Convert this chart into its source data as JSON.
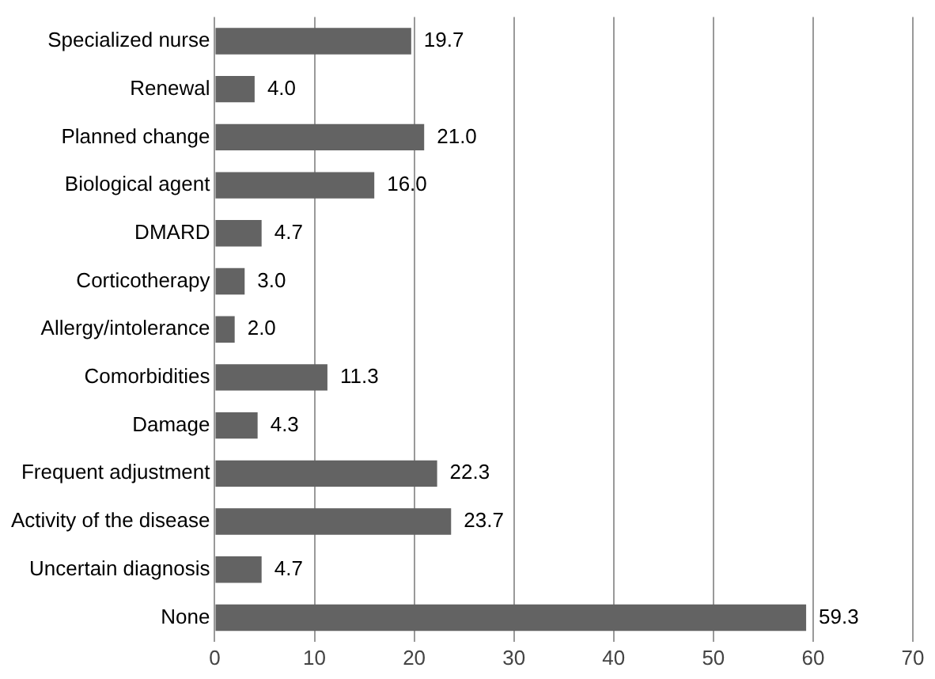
{
  "chart_data": {
    "type": "bar",
    "orientation": "horizontal",
    "categories": [
      "Specialized nurse",
      "Renewal",
      "Planned change",
      "Biological agent",
      "DMARD",
      "Corticotherapy",
      "Allergy/intolerance",
      "Comorbidities",
      "Damage",
      "Frequent adjustment",
      "Activity of the disease",
      "Uncertain diagnosis",
      "None"
    ],
    "values": [
      19.7,
      4.0,
      21.0,
      16.0,
      4.7,
      3.0,
      2.0,
      11.3,
      4.3,
      22.3,
      23.7,
      4.7,
      59.3
    ],
    "value_labels": [
      "19.7",
      "4.0",
      "21.0",
      "16.0",
      "4.7",
      "3.0",
      "2.0",
      "11.3",
      "4.3",
      "22.3",
      "23.7",
      "4.7",
      "59.3"
    ],
    "color": "#636363",
    "xlim": [
      0,
      70
    ],
    "xticks": [
      0,
      10,
      20,
      30,
      40,
      50,
      60,
      70
    ],
    "grid": "x",
    "legend": false
  }
}
